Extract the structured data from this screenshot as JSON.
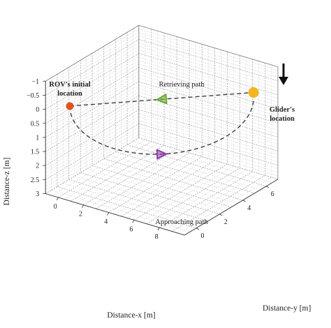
{
  "chart_data": {
    "type": "line3d",
    "title": "",
    "xlabel": "Distance-x [m]",
    "ylabel": "Distance-y [m]",
    "zlabel": "Distance-z [m]",
    "xlim": [
      -1,
      10
    ],
    "ylim": [
      -1,
      7
    ],
    "zlim": [
      -1,
      3
    ],
    "z_reversed": true,
    "grid": true,
    "x_ticks": [
      "0",
      "2",
      "4",
      "6",
      "8"
    ],
    "y_ticks": [
      "0",
      "2",
      "4",
      "6"
    ],
    "z_ticks": [
      "−1",
      "−0.5",
      "0",
      "0.5",
      "1",
      "1.5",
      "2",
      "2.5",
      "3"
    ],
    "series": [
      {
        "name": "Retrieving path",
        "style": "dashed",
        "color": "#333333",
        "points": [
          [
            0,
            0,
            0
          ],
          [
            9,
            6,
            -0.2
          ]
        ],
        "arrow": {
          "at": 0.5,
          "direction": "toward-start",
          "color": "#6aaa2a"
        }
      },
      {
        "name": "Approaching path",
        "style": "dashed",
        "color": "#333333",
        "center": [
          4.5,
          3,
          0
        ],
        "radius_xy": [
          4.5,
          3
        ],
        "arc_depth": 1.85,
        "arrow": {
          "at": 0.5,
          "direction": "toward-end",
          "color": "#8a3ca8"
        }
      }
    ],
    "markers": [
      {
        "label": "ROV's initial location",
        "point": [
          0,
          0,
          0
        ],
        "color": "#e0521e"
      },
      {
        "label": "Glider's location",
        "point": [
          9,
          6,
          -0.2
        ],
        "color": "#f2b623"
      }
    ],
    "annotations": [
      {
        "text": "Retrieving path"
      },
      {
        "text": "Approaching path"
      }
    ],
    "indicator": {
      "icon": "down-arrow-icon",
      "target": "Glider's location"
    }
  }
}
